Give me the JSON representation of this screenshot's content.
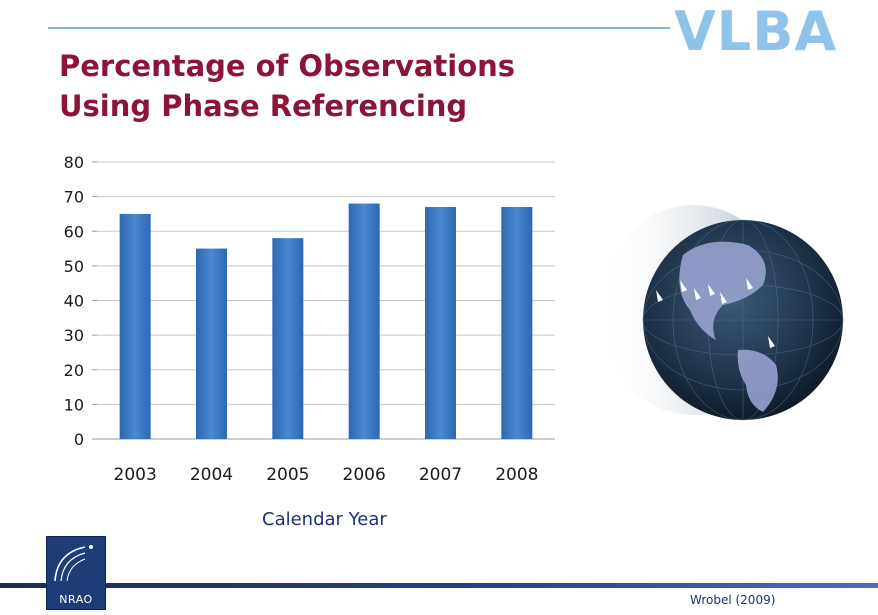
{
  "brand": "VLBA",
  "title_line1": "Percentage of Observations",
  "title_line2": "Using Phase Referencing",
  "logo_text": "NRAO",
  "credit": "Wrobel (2009)",
  "colors": {
    "title": "#8a1538",
    "brand": "#8fc4ea",
    "bar": "#3f7bc5",
    "axis_label": "#1f2f7c"
  },
  "chart_data": {
    "type": "bar",
    "categories": [
      "2003",
      "2004",
      "2005",
      "2006",
      "2007",
      "2008"
    ],
    "values": [
      65,
      55,
      58,
      68,
      67,
      67
    ],
    "xlabel": "Calendar Year",
    "ylabel": "",
    "ylim": [
      0,
      80
    ],
    "yticks": [
      0,
      10,
      20,
      30,
      40,
      50,
      60,
      70,
      80
    ],
    "grid": true
  }
}
